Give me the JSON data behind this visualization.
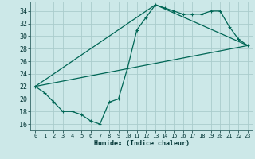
{
  "xlabel": "Humidex (Indice chaleur)",
  "bg_color": "#cce8e8",
  "grid_color": "#aacccc",
  "line_color": "#006655",
  "xlim": [
    -0.5,
    23.5
  ],
  "ylim": [
    15.0,
    35.5
  ],
  "xticks": [
    0,
    1,
    2,
    3,
    4,
    5,
    6,
    7,
    8,
    9,
    10,
    11,
    12,
    13,
    14,
    15,
    16,
    17,
    18,
    19,
    20,
    21,
    22,
    23
  ],
  "yticks": [
    16,
    18,
    20,
    22,
    24,
    26,
    28,
    30,
    32,
    34
  ],
  "main_x": [
    0,
    1,
    2,
    3,
    4,
    5,
    6,
    7,
    8,
    9,
    10,
    11,
    12,
    13,
    14,
    15,
    16,
    17,
    18,
    19,
    20,
    21,
    22,
    23
  ],
  "main_y": [
    22,
    21,
    19.5,
    18,
    18,
    17.5,
    16.5,
    16,
    19.5,
    20,
    25,
    31,
    33,
    35,
    34.5,
    34,
    33.5,
    33.5,
    33.5,
    34,
    34,
    31.5,
    29.5,
    28.5
  ],
  "line1_x": [
    0,
    23
  ],
  "line1_y": [
    22,
    28.5
  ],
  "line2_x": [
    0,
    13,
    23
  ],
  "line2_y": [
    22,
    35,
    28.5
  ],
  "marker_size": 2.5,
  "line_width": 0.9
}
